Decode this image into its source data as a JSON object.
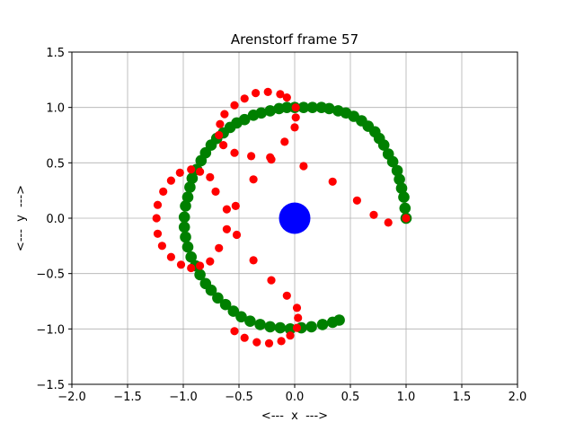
{
  "chart_data": {
    "type": "scatter",
    "title": "Arenstorf frame 57",
    "xlabel": "<---  x  --->",
    "ylabel": "<---  y  --->",
    "xlim": [
      -2.0,
      2.0
    ],
    "ylim": [
      -1.5,
      1.5
    ],
    "xticks": [
      "−2.0",
      "−1.5",
      "−1.0",
      "−0.5",
      "0.0",
      "0.5",
      "1.0",
      "1.5",
      "2.0"
    ],
    "yticks": [
      "−1.5",
      "−1.0",
      "−0.5",
      "0.0",
      "0.5",
      "1.0",
      "1.5"
    ],
    "grid": true,
    "colors": {
      "green": "#008000",
      "red": "#ff0000",
      "blue": "#0000ff"
    },
    "series": [
      {
        "color": "green",
        "marker_size": "large",
        "points": [
          [
            1.0,
            0.0
          ],
          [
            0.99,
            0.09
          ],
          [
            0.98,
            0.19
          ],
          [
            0.96,
            0.27
          ],
          [
            0.94,
            0.35
          ],
          [
            0.92,
            0.43
          ],
          [
            0.88,
            0.51
          ],
          [
            0.84,
            0.58
          ],
          [
            0.8,
            0.66
          ],
          [
            0.76,
            0.72
          ],
          [
            0.72,
            0.78
          ],
          [
            0.66,
            0.83
          ],
          [
            0.6,
            0.88
          ],
          [
            0.53,
            0.92
          ],
          [
            0.46,
            0.95
          ],
          [
            0.39,
            0.97
          ],
          [
            0.31,
            0.99
          ],
          [
            0.24,
            1.0
          ],
          [
            0.16,
            1.0
          ],
          [
            0.08,
            1.0
          ],
          [
            0.0,
            1.0
          ],
          [
            -0.07,
            1.0
          ],
          [
            -0.14,
            0.99
          ],
          [
            -0.22,
            0.97
          ],
          [
            -0.3,
            0.95
          ],
          [
            -0.37,
            0.93
          ],
          [
            -0.45,
            0.89
          ],
          [
            -0.52,
            0.86
          ],
          [
            -0.58,
            0.82
          ],
          [
            -0.64,
            0.77
          ],
          [
            -0.7,
            0.72
          ],
          [
            -0.75,
            0.66
          ],
          [
            -0.8,
            0.59
          ],
          [
            -0.84,
            0.52
          ],
          [
            -0.88,
            0.44
          ],
          [
            -0.92,
            0.36
          ],
          [
            -0.94,
            0.28
          ],
          [
            -0.96,
            0.19
          ],
          [
            -0.98,
            0.11
          ],
          [
            -0.99,
            0.01
          ],
          [
            -0.99,
            -0.08
          ],
          [
            -0.98,
            -0.17
          ],
          [
            -0.96,
            -0.26
          ],
          [
            -0.93,
            -0.35
          ],
          [
            -0.89,
            -0.43
          ],
          [
            -0.85,
            -0.51
          ],
          [
            -0.8,
            -0.59
          ],
          [
            -0.75,
            -0.65
          ],
          [
            -0.69,
            -0.72
          ],
          [
            -0.62,
            -0.78
          ],
          [
            -0.55,
            -0.84
          ],
          [
            -0.48,
            -0.89
          ],
          [
            -0.4,
            -0.93
          ],
          [
            -0.31,
            -0.96
          ],
          [
            -0.22,
            -0.98
          ],
          [
            -0.13,
            -0.99
          ],
          [
            -0.04,
            -1.0
          ],
          [
            0.06,
            -0.99
          ],
          [
            0.15,
            -0.98
          ],
          [
            0.25,
            -0.96
          ],
          [
            0.34,
            -0.94
          ],
          [
            0.4,
            -0.92
          ]
        ]
      },
      {
        "color": "red",
        "marker_size": "medium",
        "points": [
          [
            1.0,
            0.0
          ],
          [
            0.84,
            -0.04
          ],
          [
            0.71,
            0.03
          ],
          [
            0.56,
            0.16
          ],
          [
            0.34,
            0.33
          ],
          [
            0.08,
            0.47
          ],
          [
            -0.21,
            0.53
          ],
          [
            -0.22,
            0.55
          ],
          [
            -0.09,
            0.69
          ],
          [
            0.0,
            0.82
          ],
          [
            0.01,
            0.91
          ],
          [
            0.01,
            1.0
          ],
          [
            -0.07,
            1.09
          ],
          [
            -0.13,
            1.12
          ],
          [
            -0.24,
            1.14
          ],
          [
            -0.35,
            1.13
          ],
          [
            -0.45,
            1.08
          ],
          [
            -0.54,
            1.02
          ],
          [
            -0.63,
            0.94
          ],
          [
            -0.67,
            0.85
          ],
          [
            -0.68,
            0.75
          ],
          [
            -0.64,
            0.66
          ],
          [
            -0.54,
            0.59
          ],
          [
            -0.39,
            0.56
          ],
          [
            -0.37,
            0.35
          ],
          [
            -0.53,
            0.11
          ],
          [
            -0.61,
            0.08
          ],
          [
            -0.71,
            0.24
          ],
          [
            -0.76,
            0.37
          ],
          [
            -0.85,
            0.42
          ],
          [
            -0.93,
            0.44
          ],
          [
            -1.03,
            0.41
          ],
          [
            -1.11,
            0.34
          ],
          [
            -1.18,
            0.24
          ],
          [
            -1.23,
            0.12
          ],
          [
            -1.24,
            0.0
          ],
          [
            -1.23,
            -0.14
          ],
          [
            -1.19,
            -0.25
          ],
          [
            -1.11,
            -0.35
          ],
          [
            -1.02,
            -0.42
          ],
          [
            -0.93,
            -0.45
          ],
          [
            -0.85,
            -0.43
          ],
          [
            -0.76,
            -0.39
          ],
          [
            -0.68,
            -0.27
          ],
          [
            -0.61,
            -0.1
          ],
          [
            -0.52,
            -0.15
          ],
          [
            -0.37,
            -0.38
          ],
          [
            -0.21,
            -0.56
          ],
          [
            -0.07,
            -0.7
          ],
          [
            0.02,
            -0.81
          ],
          [
            0.03,
            -0.9
          ],
          [
            0.02,
            -0.99
          ],
          [
            -0.04,
            -1.06
          ],
          [
            -0.12,
            -1.11
          ],
          [
            -0.23,
            -1.13
          ],
          [
            -0.34,
            -1.12
          ],
          [
            -0.45,
            -1.08
          ],
          [
            -0.54,
            -1.02
          ]
        ]
      },
      {
        "color": "blue",
        "marker_size": "xlarge",
        "points": [
          [
            0.0,
            0.0
          ]
        ]
      }
    ]
  }
}
